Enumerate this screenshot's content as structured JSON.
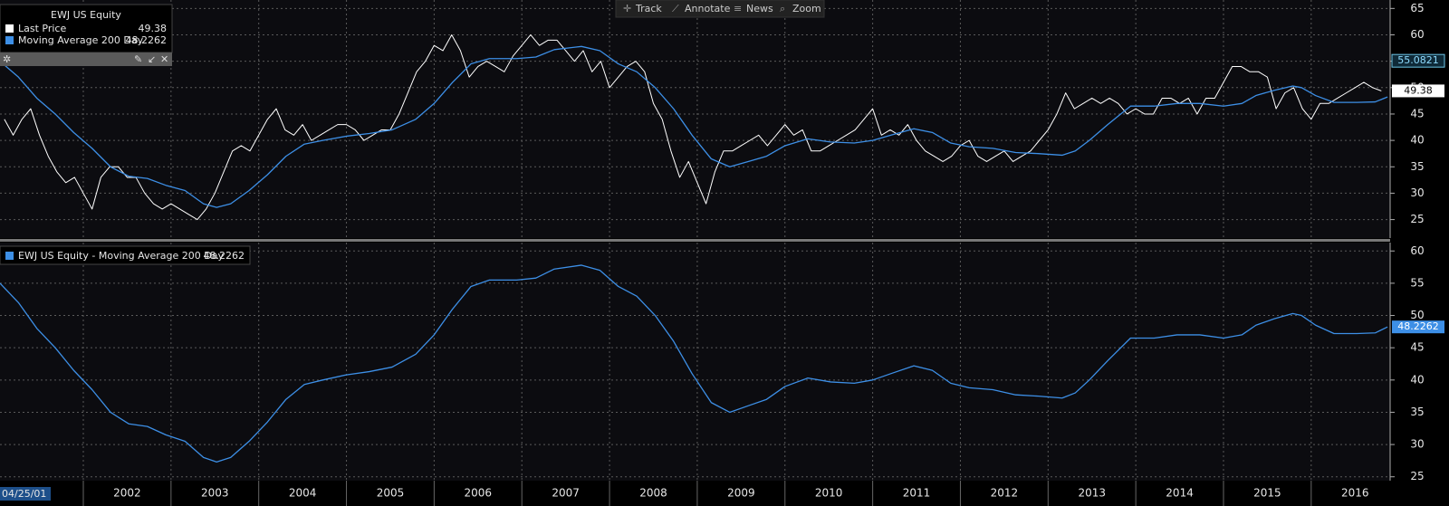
{
  "toolbar": [
    "Track",
    "Annotate",
    "News",
    "Zoom"
  ],
  "chart_data": [
    {
      "type": "line",
      "title": "EWJ US Equity",
      "xlim": [
        2001.05,
        2016.9
      ],
      "xticks": [
        2002,
        2003,
        2004,
        2005,
        2006,
        2007,
        2008,
        2009,
        2010,
        2011,
        2012,
        2013,
        2014,
        2015,
        2016
      ],
      "ylim": [
        21.5,
        66.6
      ],
      "yticks": [
        25,
        30,
        35,
        40,
        45,
        50,
        55,
        60,
        65
      ],
      "grid": true,
      "reference_value": 55.0821,
      "series": [
        {
          "name": "Last Price",
          "color": "#ffffff",
          "x": [
            2001.1,
            2001.2,
            2001.3,
            2001.4,
            2001.5,
            2001.6,
            2001.7,
            2001.8,
            2001.9,
            2002.0,
            2002.1,
            2002.2,
            2002.3,
            2002.4,
            2002.5,
            2002.6,
            2002.7,
            2002.8,
            2002.9,
            2003.0,
            2003.1,
            2003.2,
            2003.3,
            2003.4,
            2003.5,
            2003.6,
            2003.7,
            2003.8,
            2003.9,
            2004.0,
            2004.1,
            2004.2,
            2004.3,
            2004.4,
            2004.5,
            2004.6,
            2004.7,
            2004.8,
            2004.9,
            2005.0,
            2005.1,
            2005.2,
            2005.3,
            2005.4,
            2005.5,
            2005.6,
            2005.7,
            2005.8,
            2005.9,
            2006.0,
            2006.1,
            2006.2,
            2006.3,
            2006.4,
            2006.5,
            2006.6,
            2006.7,
            2006.8,
            2006.9,
            2007.0,
            2007.1,
            2007.2,
            2007.3,
            2007.4,
            2007.5,
            2007.6,
            2007.7,
            2007.8,
            2007.9,
            2008.0,
            2008.1,
            2008.2,
            2008.3,
            2008.4,
            2008.5,
            2008.6,
            2008.7,
            2008.8,
            2008.9,
            2009.0,
            2009.1,
            2009.2,
            2009.3,
            2009.4,
            2009.5,
            2009.6,
            2009.7,
            2009.8,
            2009.9,
            2010.0,
            2010.1,
            2010.2,
            2010.3,
            2010.4,
            2010.5,
            2010.6,
            2010.7,
            2010.8,
            2010.9,
            2011.0,
            2011.1,
            2011.2,
            2011.3,
            2011.4,
            2011.5,
            2011.6,
            2011.7,
            2011.8,
            2011.9,
            2012.0,
            2012.1,
            2012.2,
            2012.3,
            2012.4,
            2012.5,
            2012.6,
            2012.7,
            2012.8,
            2012.9,
            2013.0,
            2013.1,
            2013.2,
            2013.3,
            2013.4,
            2013.5,
            2013.6,
            2013.7,
            2013.8,
            2013.9,
            2014.0,
            2014.1,
            2014.2,
            2014.3,
            2014.4,
            2014.5,
            2014.6,
            2014.7,
            2014.8,
            2014.9,
            2015.0,
            2015.1,
            2015.2,
            2015.3,
            2015.4,
            2015.5,
            2015.6,
            2015.7,
            2015.8,
            2015.9,
            2016.0,
            2016.1,
            2016.2,
            2016.3,
            2016.4,
            2016.5,
            2016.6,
            2016.7,
            2016.8
          ],
          "values": [
            44,
            41,
            44,
            46,
            41,
            37,
            34,
            32,
            33,
            30,
            27,
            33,
            35,
            35,
            33,
            33,
            30,
            28,
            27,
            28,
            27,
            26,
            25,
            27,
            30,
            34,
            38,
            39,
            38,
            41,
            44,
            46,
            42,
            41,
            43,
            40,
            41,
            42,
            43,
            43,
            42,
            40,
            41,
            42,
            42,
            45,
            49,
            53,
            55,
            58,
            57,
            60,
            57,
            52,
            54,
            55,
            54,
            53,
            56,
            58,
            60,
            58,
            59,
            59,
            57,
            55,
            57,
            53,
            55,
            50,
            52,
            54,
            55,
            53,
            47,
            44,
            38,
            33,
            36,
            32,
            28,
            34,
            38,
            38,
            39,
            40,
            41,
            39,
            41,
            43,
            41,
            42,
            38,
            38,
            39,
            40,
            41,
            42,
            44,
            46,
            41,
            42,
            41,
            43,
            40,
            38,
            37,
            36,
            37,
            39,
            40,
            37,
            36,
            37,
            38,
            36,
            37,
            38,
            40,
            42,
            45,
            49,
            46,
            47,
            48,
            47,
            48,
            47,
            45,
            46,
            45,
            45,
            48,
            48,
            47,
            48,
            45,
            48,
            48,
            51,
            54,
            54,
            53,
            53,
            52,
            46,
            49,
            50,
            46,
            44,
            47,
            47,
            48,
            49,
            50,
            51,
            50,
            49.38
          ]
        },
        {
          "name": "Moving Average 200 Day",
          "color": "#3d8fe6",
          "x": [
            2001.05,
            2001.26,
            2001.47,
            2001.68,
            2001.89,
            2002.1,
            2002.31,
            2002.52,
            2002.73,
            2002.94,
            2003.16,
            2003.37,
            2003.52,
            2003.68,
            2003.89,
            2004.1,
            2004.31,
            2004.52,
            2004.73,
            2005.0,
            2005.26,
            2005.52,
            2005.79,
            2006.0,
            2006.21,
            2006.42,
            2006.63,
            2006.94,
            2007.16,
            2007.37,
            2007.68,
            2007.89,
            2008.1,
            2008.31,
            2008.52,
            2008.73,
            2008.94,
            2009.16,
            2009.37,
            2009.58,
            2009.79,
            2010.0,
            2010.26,
            2010.52,
            2010.79,
            2011.0,
            2011.21,
            2011.47,
            2011.68,
            2011.89,
            2012.1,
            2012.37,
            2012.63,
            2012.89,
            2013.16,
            2013.31,
            2013.47,
            2013.68,
            2013.94,
            2014.21,
            2014.47,
            2014.73,
            2015.0,
            2015.21,
            2015.37,
            2015.58,
            2015.79,
            2015.89,
            2016.05,
            2016.26,
            2016.52,
            2016.73,
            2016.87
          ],
          "values": [
            55,
            52,
            48,
            45,
            41.5,
            38.5,
            35,
            33.2,
            32.8,
            31.5,
            30.5,
            28,
            27.3,
            28,
            30.5,
            33.5,
            37,
            39.3,
            40,
            40.8,
            41.3,
            42,
            44,
            47,
            51,
            54.5,
            55.5,
            55.5,
            55.8,
            57.2,
            57.8,
            57,
            54.5,
            53,
            50,
            46,
            41,
            36.5,
            35,
            36,
            37,
            39,
            40.3,
            39.7,
            39.5,
            40,
            41,
            42.2,
            41.5,
            39.5,
            38.8,
            38.5,
            37.7,
            37.5,
            37.2,
            38,
            40,
            43,
            46.5,
            46.5,
            47,
            47,
            46.5,
            47,
            48.5,
            49.5,
            50.3,
            50,
            48.5,
            47.2,
            47.2,
            47.3,
            48.2262
          ]
        }
      ]
    },
    {
      "type": "line",
      "x_start_label": "04/25/01",
      "xlim": [
        2001.05,
        2016.9
      ],
      "xticks": [
        2002,
        2003,
        2004,
        2005,
        2006,
        2007,
        2008,
        2009,
        2010,
        2011,
        2012,
        2013,
        2014,
        2015,
        2016
      ],
      "ylim": [
        24.4,
        61.3
      ],
      "yticks": [
        25,
        30,
        35,
        40,
        45,
        50,
        55,
        60
      ],
      "grid": true,
      "series": [
        {
          "name": "EWJ US Equity - Moving Average 200 Day",
          "color": "#3d8fe6",
          "x": [
            2001.05,
            2001.26,
            2001.47,
            2001.68,
            2001.89,
            2002.1,
            2002.31,
            2002.52,
            2002.73,
            2002.94,
            2003.16,
            2003.37,
            2003.52,
            2003.68,
            2003.89,
            2004.1,
            2004.31,
            2004.52,
            2004.73,
            2005.0,
            2005.26,
            2005.52,
            2005.79,
            2006.0,
            2006.21,
            2006.42,
            2006.63,
            2006.94,
            2007.16,
            2007.37,
            2007.68,
            2007.89,
            2008.1,
            2008.31,
            2008.52,
            2008.73,
            2008.94,
            2009.16,
            2009.37,
            2009.58,
            2009.79,
            2010.0,
            2010.26,
            2010.52,
            2010.79,
            2011.0,
            2011.21,
            2011.47,
            2011.68,
            2011.89,
            2012.1,
            2012.37,
            2012.63,
            2012.89,
            2013.16,
            2013.31,
            2013.47,
            2013.68,
            2013.94,
            2014.21,
            2014.47,
            2014.73,
            2015.0,
            2015.21,
            2015.37,
            2015.58,
            2015.79,
            2015.89,
            2016.05,
            2016.26,
            2016.52,
            2016.73,
            2016.87
          ],
          "values": [
            55,
            52,
            48,
            45,
            41.5,
            38.5,
            35,
            33.2,
            32.8,
            31.5,
            30.5,
            28,
            27.3,
            28,
            30.5,
            33.5,
            37,
            39.3,
            40,
            40.8,
            41.3,
            42,
            44,
            47,
            51,
            54.5,
            55.5,
            55.5,
            55.8,
            57.2,
            57.8,
            57,
            54.5,
            53,
            50,
            46,
            41,
            36.5,
            35,
            36,
            37,
            39,
            40.3,
            39.7,
            39.5,
            40,
            41,
            42.2,
            41.5,
            39.5,
            38.8,
            38.5,
            37.7,
            37.5,
            37.2,
            38,
            40,
            43,
            46.5,
            46.5,
            47,
            47,
            46.5,
            47,
            48.5,
            49.5,
            50.3,
            50,
            48.5,
            47.2,
            47.2,
            47.3,
            48.2262
          ]
        }
      ]
    }
  ]
}
